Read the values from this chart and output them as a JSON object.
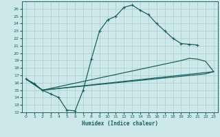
{
  "title": "",
  "xlabel": "Humidex (Indice chaleur)",
  "bg_color": "#cce8e8",
  "grid_color": "#aacccc",
  "line_color": "#1a5f5f",
  "xlim": [
    -0.5,
    23.5
  ],
  "ylim": [
    12,
    27
  ],
  "xticks": [
    0,
    1,
    2,
    3,
    4,
    5,
    6,
    7,
    8,
    9,
    10,
    11,
    12,
    13,
    14,
    15,
    16,
    17,
    18,
    19,
    20,
    21,
    22,
    23
  ],
  "yticks": [
    12,
    13,
    14,
    15,
    16,
    17,
    18,
    19,
    20,
    21,
    22,
    23,
    24,
    25,
    26
  ],
  "curve1_x": [
    0,
    1,
    2,
    3,
    4,
    5,
    6,
    7,
    8,
    9,
    10,
    11,
    12,
    13,
    14,
    15,
    16,
    17,
    18,
    19,
    20,
    21
  ],
  "curve1_y": [
    16.5,
    15.9,
    15.0,
    14.5,
    14.0,
    12.3,
    12.2,
    15.0,
    19.2,
    23.0,
    24.5,
    25.0,
    26.2,
    26.5,
    25.8,
    25.2,
    24.0,
    23.0,
    22.0,
    21.3,
    21.2,
    21.1
  ],
  "curve2_x": [
    0,
    2,
    19,
    20,
    21,
    22,
    23
  ],
  "curve2_y": [
    16.5,
    15.0,
    19.0,
    19.3,
    19.2,
    18.9,
    17.5
  ],
  "curve3_x": [
    0,
    2,
    22,
    23
  ],
  "curve3_y": [
    16.5,
    15.0,
    17.2,
    17.5
  ],
  "curve4_x": [
    0,
    2,
    23
  ],
  "curve4_y": [
    16.5,
    15.0,
    17.5
  ]
}
